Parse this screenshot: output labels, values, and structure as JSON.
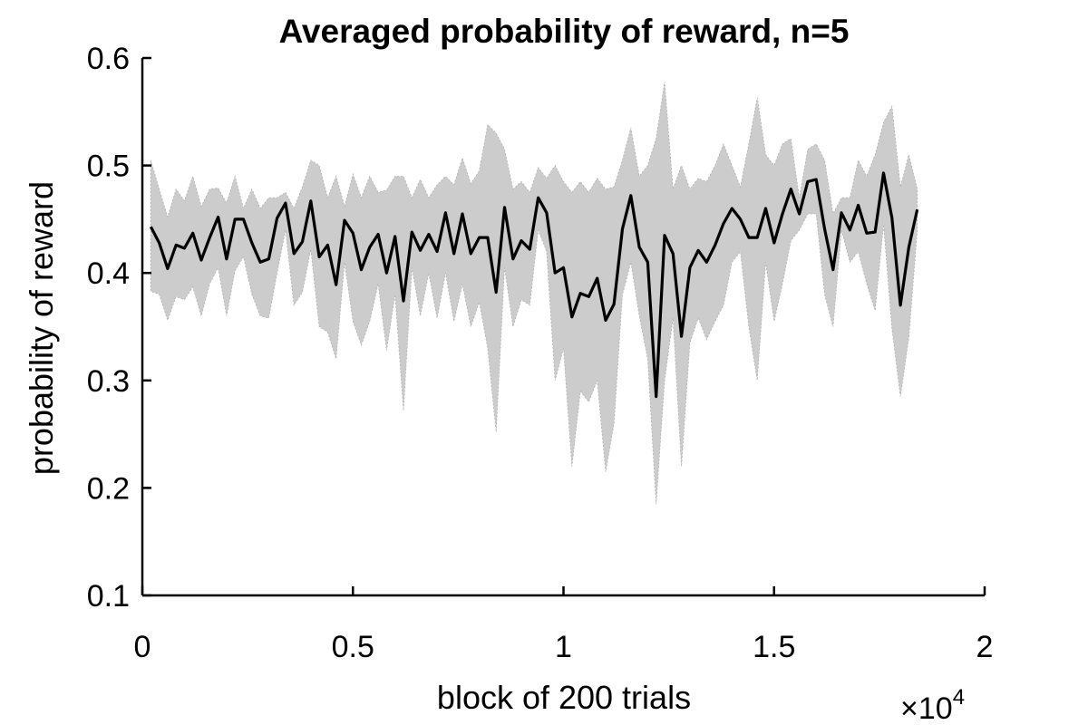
{
  "chart_data": {
    "type": "line",
    "title": "Averaged probability of reward, n=5",
    "xlabel": "block of 200 trials",
    "ylabel": "probability of reward",
    "x_multiplier": "×10",
    "x_multiplier_exponent": "4",
    "xlim": [
      0,
      20000
    ],
    "ylim": [
      0.1,
      0.6
    ],
    "xticks": [
      0,
      5000,
      10000,
      15000,
      20000
    ],
    "xtick_labels": [
      "0",
      "0.5",
      "1",
      "1.5",
      "2"
    ],
    "yticks": [
      0.1,
      0.2,
      0.3,
      0.4,
      0.5,
      0.6
    ],
    "ytick_labels": [
      "0.1",
      "0.2",
      "0.3",
      "0.4",
      "0.5",
      "0.6"
    ],
    "grid": false,
    "line_color": "#000000",
    "band_color": "#cccccc",
    "x": [
      200,
      400,
      600,
      800,
      1000,
      1200,
      1400,
      1600,
      1800,
      2000,
      2200,
      2400,
      2600,
      2800,
      3000,
      3200,
      3400,
      3600,
      3800,
      4000,
      4200,
      4400,
      4600,
      4800,
      5000,
      5200,
      5400,
      5600,
      5800,
      6000,
      6200,
      6400,
      6600,
      6800,
      7000,
      7200,
      7400,
      7600,
      7800,
      8000,
      8200,
      8400,
      8600,
      8800,
      9000,
      9200,
      9400,
      9600,
      9800,
      10000,
      10200,
      10400,
      10600,
      10800,
      11000,
      11200,
      11400,
      11600,
      11800,
      12000,
      12200,
      12400,
      12600,
      12800,
      13000,
      13200,
      13400,
      13600,
      13800,
      14000,
      14200,
      14400,
      14600,
      14800,
      15000,
      15200,
      15400,
      15600,
      15800,
      16000,
      16200,
      16400,
      16600,
      16800,
      17000,
      17200,
      17400,
      17600,
      17800,
      18000,
      18200,
      18400
    ],
    "mean": [
      0.443,
      0.428,
      0.404,
      0.426,
      0.423,
      0.437,
      0.412,
      0.433,
      0.452,
      0.413,
      0.45,
      0.45,
      0.428,
      0.41,
      0.413,
      0.451,
      0.465,
      0.418,
      0.429,
      0.467,
      0.415,
      0.426,
      0.389,
      0.449,
      0.437,
      0.403,
      0.424,
      0.436,
      0.4,
      0.434,
      0.374,
      0.438,
      0.421,
      0.436,
      0.42,
      0.456,
      0.418,
      0.455,
      0.418,
      0.433,
      0.433,
      0.382,
      0.461,
      0.413,
      0.43,
      0.422,
      0.47,
      0.456,
      0.4,
      0.405,
      0.359,
      0.381,
      0.378,
      0.395,
      0.356,
      0.371,
      0.441,
      0.472,
      0.424,
      0.41,
      0.285,
      0.435,
      0.418,
      0.341,
      0.405,
      0.421,
      0.41,
      0.426,
      0.446,
      0.46,
      0.45,
      0.433,
      0.433,
      0.46,
      0.428,
      0.455,
      0.478,
      0.455,
      0.485,
      0.487,
      0.441,
      0.403,
      0.456,
      0.44,
      0.463,
      0.437,
      0.438,
      0.493,
      0.451,
      0.37,
      0.424,
      0.459
    ],
    "upper": [
      0.505,
      0.478,
      0.452,
      0.478,
      0.467,
      0.49,
      0.462,
      0.478,
      0.479,
      0.465,
      0.49,
      0.46,
      0.478,
      0.46,
      0.47,
      0.47,
      0.475,
      0.46,
      0.48,
      0.505,
      0.5,
      0.47,
      0.49,
      0.462,
      0.492,
      0.47,
      0.49,
      0.475,
      0.477,
      0.49,
      0.49,
      0.47,
      0.487,
      0.47,
      0.482,
      0.49,
      0.482,
      0.507,
      0.483,
      0.495,
      0.538,
      0.53,
      0.515,
      0.478,
      0.485,
      0.475,
      0.498,
      0.488,
      0.5,
      0.485,
      0.475,
      0.485,
      0.475,
      0.488,
      0.478,
      0.48,
      0.505,
      0.535,
      0.49,
      0.5,
      0.525,
      0.578,
      0.478,
      0.5,
      0.478,
      0.488,
      0.485,
      0.5,
      0.52,
      0.5,
      0.48,
      0.52,
      0.563,
      0.51,
      0.5,
      0.52,
      0.525,
      0.47,
      0.515,
      0.52,
      0.505,
      0.455,
      0.47,
      0.47,
      0.505,
      0.49,
      0.51,
      0.54,
      0.555,
      0.48,
      0.51,
      0.478
    ],
    "lower": [
      0.383,
      0.38,
      0.356,
      0.378,
      0.375,
      0.387,
      0.36,
      0.39,
      0.405,
      0.36,
      0.402,
      0.415,
      0.38,
      0.36,
      0.358,
      0.4,
      0.44,
      0.37,
      0.382,
      0.422,
      0.35,
      0.345,
      0.32,
      0.41,
      0.355,
      0.333,
      0.355,
      0.39,
      0.328,
      0.38,
      0.272,
      0.405,
      0.36,
      0.4,
      0.358,
      0.4,
      0.355,
      0.39,
      0.35,
      0.373,
      0.33,
      0.252,
      0.405,
      0.35,
      0.375,
      0.37,
      0.44,
      0.42,
      0.3,
      0.33,
      0.22,
      0.29,
      0.28,
      0.3,
      0.215,
      0.26,
      0.38,
      0.41,
      0.36,
      0.32,
      0.185,
      0.3,
      0.358,
      0.22,
      0.335,
      0.358,
      0.338,
      0.355,
      0.37,
      0.41,
      0.42,
      0.35,
      0.3,
      0.41,
      0.355,
      0.39,
      0.43,
      0.44,
      0.455,
      0.455,
      0.38,
      0.35,
      0.44,
      0.41,
      0.42,
      0.39,
      0.365,
      0.445,
      0.348,
      0.285,
      0.34,
      0.44
    ]
  }
}
